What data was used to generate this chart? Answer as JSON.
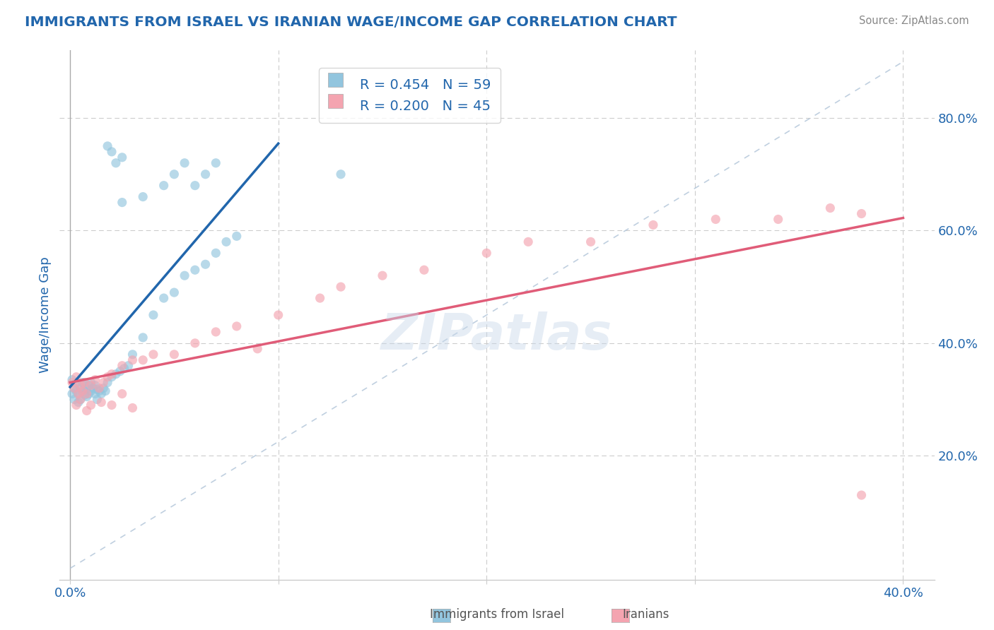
{
  "title": "IMMIGRANTS FROM ISRAEL VS IRANIAN WAGE/INCOME GAP CORRELATION CHART",
  "source": "Source: ZipAtlas.com",
  "ylabel": "Wage/Income Gap",
  "x_min": 0.0,
  "x_max": 0.4,
  "y_min": 0.0,
  "y_max": 0.9,
  "y_ticks_right": [
    0.2,
    0.4,
    0.6,
    0.8
  ],
  "y_tick_labels_right": [
    "20.0%",
    "40.0%",
    "60.0%",
    "80.0%"
  ],
  "legend_israel_r": "R = 0.454",
  "legend_israel_n": "N = 59",
  "legend_iran_r": "R = 0.200",
  "legend_iran_n": "N = 45",
  "legend_israel_label": "Immigrants from Israel",
  "legend_iran_label": "Iranians",
  "israel_color": "#92c5de",
  "iran_color": "#f4a4b0",
  "regression_israel_color": "#2166ac",
  "regression_iran_color": "#e05c78",
  "diag_color": "#b0c4d8",
  "background_color": "#ffffff",
  "grid_color": "#cccccc",
  "watermark_text": "ZIPatlas",
  "title_color": "#2166ac",
  "axis_color": "#2166ac",
  "tick_color": "#2166ac",
  "legend_text_color": "#333333",
  "israel_x": [
    0.001,
    0.001,
    0.002,
    0.002,
    0.003,
    0.003,
    0.004,
    0.004,
    0.005,
    0.005,
    0.006,
    0.006,
    0.007,
    0.007,
    0.008,
    0.008,
    0.009,
    0.009,
    0.01,
    0.01,
    0.011,
    0.012,
    0.012,
    0.013,
    0.013,
    0.014,
    0.015,
    0.016,
    0.017,
    0.018,
    0.02,
    0.022,
    0.024,
    0.026,
    0.028,
    0.03,
    0.035,
    0.04,
    0.045,
    0.05,
    0.055,
    0.06,
    0.065,
    0.07,
    0.075,
    0.08,
    0.045,
    0.05,
    0.055,
    0.06,
    0.065,
    0.07,
    0.025,
    0.035,
    0.13,
    0.02,
    0.018,
    0.022,
    0.025
  ],
  "israel_y": [
    0.335,
    0.31,
    0.32,
    0.3,
    0.33,
    0.315,
    0.31,
    0.295,
    0.32,
    0.3,
    0.33,
    0.315,
    0.325,
    0.308,
    0.318,
    0.305,
    0.325,
    0.31,
    0.33,
    0.315,
    0.32,
    0.325,
    0.31,
    0.318,
    0.3,
    0.315,
    0.31,
    0.32,
    0.315,
    0.33,
    0.34,
    0.345,
    0.35,
    0.355,
    0.36,
    0.38,
    0.41,
    0.45,
    0.48,
    0.49,
    0.52,
    0.53,
    0.54,
    0.56,
    0.58,
    0.59,
    0.68,
    0.7,
    0.72,
    0.68,
    0.7,
    0.72,
    0.65,
    0.66,
    0.7,
    0.74,
    0.75,
    0.72,
    0.73
  ],
  "iran_x": [
    0.001,
    0.002,
    0.003,
    0.004,
    0.005,
    0.006,
    0.007,
    0.008,
    0.01,
    0.012,
    0.014,
    0.016,
    0.018,
    0.02,
    0.025,
    0.03,
    0.035,
    0.04,
    0.05,
    0.06,
    0.07,
    0.08,
    0.09,
    0.1,
    0.12,
    0.13,
    0.15,
    0.17,
    0.2,
    0.22,
    0.25,
    0.28,
    0.31,
    0.34,
    0.365,
    0.38,
    0.003,
    0.005,
    0.008,
    0.01,
    0.015,
    0.02,
    0.025,
    0.03,
    0.38
  ],
  "iran_y": [
    0.33,
    0.32,
    0.34,
    0.31,
    0.325,
    0.315,
    0.33,
    0.31,
    0.325,
    0.335,
    0.32,
    0.33,
    0.34,
    0.345,
    0.36,
    0.37,
    0.37,
    0.38,
    0.38,
    0.4,
    0.42,
    0.43,
    0.39,
    0.45,
    0.48,
    0.5,
    0.52,
    0.53,
    0.56,
    0.58,
    0.58,
    0.61,
    0.62,
    0.62,
    0.64,
    0.63,
    0.29,
    0.3,
    0.28,
    0.29,
    0.295,
    0.29,
    0.31,
    0.285,
    0.13
  ]
}
